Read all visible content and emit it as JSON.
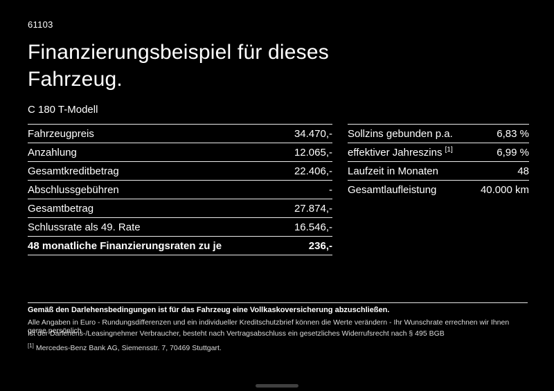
{
  "page": {
    "code": "61103",
    "title": "Finanzierungsbeispiel für dieses Fahrzeug.",
    "model": "C 180 T-Modell"
  },
  "left_table": {
    "rows": [
      {
        "label": "Fahrzeugpreis",
        "value": "34.470,-"
      },
      {
        "label": "Anzahlung",
        "value": "12.065,-"
      },
      {
        "label": "Gesamtkreditbetrag",
        "value": "22.406,-"
      },
      {
        "label": "Abschlussgebühren",
        "value": "-"
      },
      {
        "label": "Gesamtbetrag",
        "value": "27.874,-"
      },
      {
        "label": "Schlussrate als 49. Rate",
        "value": "16.546,-"
      },
      {
        "label": "48 monatliche Finanzierungsraten zu je",
        "value": "236,-"
      }
    ]
  },
  "right_table": {
    "rows": [
      {
        "label": "Sollzins gebunden p.a.",
        "value": "6,83 %"
      },
      {
        "label": "effektiver Jahreszins",
        "sup": "[1]",
        "value": "6,99 %"
      },
      {
        "label": "Laufzeit in Monaten",
        "value": "48"
      },
      {
        "label": "Gesamtlaufleistung",
        "value": "40.000 km"
      }
    ]
  },
  "footer": {
    "line1": "Gemäß den Darlehensbedingungen ist für das Fahrzeug eine Vollkaskoversicherung abzuschließen.",
    "line2": "Alle Angaben in Euro - Rundungsdifferenzen und ein individueller Kreditschutzbrief können die Werte verändern - Ihr Wunschrate errechnen wir Ihnen gerne persönlich",
    "line3": "Ist der Darlehens-/Leasingnehmer Verbraucher, besteht nach Vertragsabschluss ein gesetzliches Widerrufsrecht nach § 495 BGB",
    "footnote_marker": "[1]",
    "footnote_text": "Mercedes-Benz Bank AG, Siemensstr. 7, 70469 Stuttgart."
  }
}
